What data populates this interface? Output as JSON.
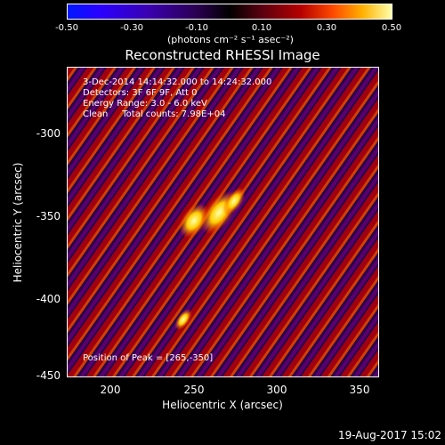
{
  "colorbar": {
    "ticks": [
      "-0.50",
      "-0.30",
      "-0.10",
      "0.10",
      "0.30",
      "0.50"
    ],
    "unit": "(photons cm⁻² s⁻¹ asec⁻²)"
  },
  "title": "Reconstructed RHESSI Image",
  "info": {
    "time": "3-Dec-2014 14:14:32.000 to 14:24:32.000",
    "detectors": "Detectors: 3F 6F 9F, Att 0",
    "energy": "Energy Range: 3.0 - 6.0 keV",
    "clean": "Clean     Total counts: 7.98E+04"
  },
  "peak_text": "Position of Peak = [265,-350]",
  "xlabel": "Heliocentric X (arcsec)",
  "ylabel": "Heliocentric Y (arcsec)",
  "xticks": [
    "200",
    "250",
    "300",
    "350"
  ],
  "yticks": [
    "-300",
    "-350",
    "-400",
    "-450"
  ],
  "date": "19-Aug-2017 15:02",
  "colors": {
    "stripe_dark": "#2a004a",
    "stripe_red": "#a00010",
    "stripe_purple": "#5a006e",
    "hot": "#ffe040"
  }
}
